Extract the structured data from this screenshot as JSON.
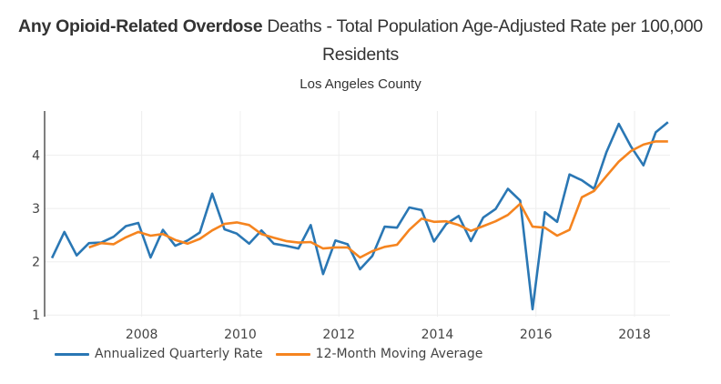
{
  "chart_data": {
    "type": "line",
    "title_bold": "Any Opioid-Related Overdose",
    "title_rest": " Deaths - Total Population Age-Adjusted Rate per 100,000",
    "title_line2": "Residents",
    "subtitle": "Los Angeles County",
    "xlabel": "",
    "ylabel": "",
    "xlim": [
      2006.03,
      2018.72
    ],
    "ylim": [
      0.97,
      4.83
    ],
    "x_ticks": [
      2008,
      2010,
      2012,
      2014,
      2016,
      2018
    ],
    "x_tick_labels": [
      "2008",
      "2010",
      "2012",
      "2014",
      "2016",
      "2018"
    ],
    "y_ticks": [
      1,
      2,
      3,
      4
    ],
    "y_tick_labels": [
      "1",
      "2",
      "3",
      "4"
    ],
    "grid": true,
    "legend_position": "bottom-left",
    "x_start": 2006.18,
    "x_step": 0.25,
    "series": [
      {
        "name": "Annualized Quarterly Rate",
        "color": "#2a77b4",
        "start_index": 0,
        "values": [
          2.07,
          2.56,
          2.12,
          2.35,
          2.36,
          2.47,
          2.67,
          2.73,
          2.08,
          2.6,
          2.3,
          2.4,
          2.55,
          3.28,
          2.61,
          2.53,
          2.34,
          2.59,
          2.34,
          2.3,
          2.25,
          2.69,
          1.77,
          2.4,
          2.33,
          1.86,
          2.11,
          2.66,
          2.64,
          3.02,
          2.97,
          2.38,
          2.71,
          2.86,
          2.39,
          2.83,
          2.99,
          3.37,
          3.15,
          1.11,
          2.93,
          2.75,
          3.64,
          3.53,
          3.37,
          4.06,
          4.59,
          4.16,
          3.81,
          4.43,
          4.62
        ]
      },
      {
        "name": "12-Month Moving Average",
        "color": "#f5841f",
        "start_index": 3,
        "values": [
          2.27,
          2.35,
          2.33,
          2.46,
          2.56,
          2.49,
          2.52,
          2.41,
          2.34,
          2.43,
          2.59,
          2.71,
          2.74,
          2.69,
          2.52,
          2.45,
          2.39,
          2.36,
          2.37,
          2.25,
          2.27,
          2.27,
          2.08,
          2.2,
          2.28,
          2.32,
          2.6,
          2.81,
          2.75,
          2.76,
          2.69,
          2.58,
          2.67,
          2.76,
          2.88,
          3.09,
          2.66,
          2.64,
          2.49,
          2.6,
          3.21,
          3.33,
          3.61,
          3.88,
          4.08,
          4.2,
          4.26,
          4.26
        ]
      }
    ]
  },
  "legend": {
    "items": [
      {
        "label": "Annualized Quarterly Rate",
        "color": "#2a77b4"
      },
      {
        "label": "12-Month Moving Average",
        "color": "#f5841f"
      }
    ]
  }
}
